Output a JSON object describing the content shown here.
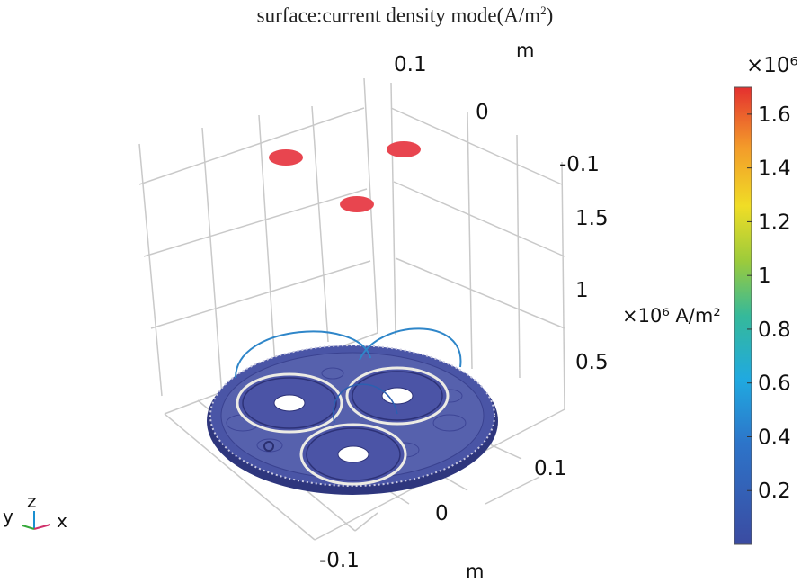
{
  "title": {
    "text": "surface:current density mode(A/m",
    "sup": "2",
    "close": ")"
  },
  "chart_data": {
    "type": "3d-surface",
    "title": "surface:current density mode(A/m²)",
    "x_axis": {
      "label": "m",
      "ticks": [
        "-0.1",
        "0",
        "0.1"
      ]
    },
    "y_axis": {
      "label": "m",
      "ticks": [
        "0.1",
        "0",
        "-0.1"
      ]
    },
    "z_axis": {
      "label": "×10⁶ A/m²",
      "ticks": [
        "0.5",
        "1",
        "1.5"
      ]
    },
    "colorbar": {
      "exponent": "×10⁶",
      "ticks": [
        "1.6",
        "1.4",
        "1.2",
        "1",
        "0.8",
        "0.6",
        "0.4",
        "0.2"
      ],
      "tick_values": [
        1.6,
        1.4,
        1.2,
        1.0,
        0.8,
        0.6,
        0.4,
        0.2
      ],
      "range": [
        0.0,
        1.7
      ],
      "colormap": "rainbow"
    },
    "conductor_peaks": {
      "count": 3,
      "value": 1.7,
      "color": "#e8454f"
    },
    "base_value": 0.0,
    "grid": true
  },
  "colors": {
    "grid": "#c9c9c9",
    "base": "#4a55a6",
    "base_dark": "#2e367d",
    "ring": "#ecebe4",
    "peak": "#e8454f",
    "arc": "#2f86c9"
  },
  "triad": {
    "y": "y",
    "z": "z",
    "x": "x"
  }
}
